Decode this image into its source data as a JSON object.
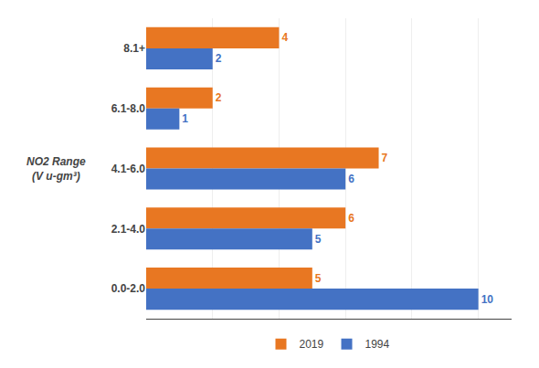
{
  "chart_data": {
    "type": "bar",
    "orientation": "horizontal",
    "categories": [
      "0.0-2.0",
      "2.1-4.0",
      "4.1-6.0",
      "6.1-8.0",
      "8.1+"
    ],
    "series": [
      {
        "name": "2019",
        "color": "#E87722",
        "values": [
          5,
          6,
          7,
          2,
          4
        ]
      },
      {
        "name": "1994",
        "color": "#4472C4",
        "values": [
          10,
          5,
          6,
          1,
          2
        ]
      }
    ],
    "ylabel": "NO2 Range\n(V u-gm³)",
    "xlim": [
      0,
      11
    ],
    "xticks": [
      0,
      2,
      4,
      6,
      8,
      10
    ],
    "grid": true,
    "tick_labels": "y",
    "data_labels": true,
    "legend": "bottom"
  }
}
